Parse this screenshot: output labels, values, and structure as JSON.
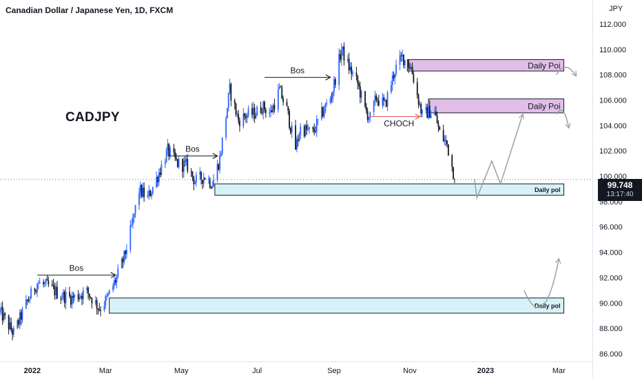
{
  "header": {
    "title": "Canadian Dollar / Japanese Yen, 1D, FXCM",
    "symbol": "CADJPY",
    "currency_label": "JPY"
  },
  "price_badge": {
    "price": "99.748",
    "countdown": "13:17:40"
  },
  "colors": {
    "up": "#2962ff",
    "down": "#131722",
    "zone_blue": "#d8f1f7",
    "zone_purple": "#e1bee7",
    "choch_arrow": "#e05560",
    "projection": "#9aa0a6"
  },
  "chart_data": {
    "type": "candlestick",
    "ylabel": "JPY",
    "ylim": [
      85.4,
      113.9
    ],
    "x_range": [
      "2021-12-06",
      "2023-03-28"
    ],
    "y_ticks": [
      "112.000",
      "110.000",
      "108.000",
      "106.000",
      "104.000",
      "102.000",
      "100.000",
      "98.000",
      "96.000",
      "94.000",
      "92.000",
      "90.000",
      "88.000",
      "86.000"
    ],
    "x_ticks": [
      {
        "label": "2022",
        "date": "2022-01-01",
        "bold": true
      },
      {
        "label": "Mar",
        "date": "2022-03-01"
      },
      {
        "label": "May",
        "date": "2022-05-01"
      },
      {
        "label": "Jul",
        "date": "2022-07-01"
      },
      {
        "label": "Sep",
        "date": "2022-09-01"
      },
      {
        "label": "Nov",
        "date": "2022-11-01"
      },
      {
        "label": "2023",
        "date": "2023-01-01",
        "bold": true
      },
      {
        "label": "Mar",
        "date": "2023-03-01"
      }
    ],
    "current_price": 99.748,
    "price_path": [
      [
        "2021-12-06",
        89.3
      ],
      [
        "2021-12-17",
        87.6
      ],
      [
        "2021-12-27",
        89.9
      ],
      [
        "2022-01-05",
        91.6
      ],
      [
        "2022-01-14",
        91.3
      ],
      [
        "2022-01-24",
        90.6
      ],
      [
        "2022-02-02",
        90.4
      ],
      [
        "2022-02-14",
        90.9
      ],
      [
        "2022-02-24",
        89.6
      ],
      [
        "2022-03-02",
        90.3
      ],
      [
        "2022-03-10",
        92.0
      ],
      [
        "2022-03-16",
        93.6
      ],
      [
        "2022-03-22",
        96.0
      ],
      [
        "2022-03-28",
        98.9
      ],
      [
        "2022-04-04",
        98.3
      ],
      [
        "2022-04-11",
        99.8
      ],
      [
        "2022-04-20",
        102.0
      ],
      [
        "2022-04-28",
        101.0
      ],
      [
        "2022-05-06",
        100.8
      ],
      [
        "2022-05-12",
        99.6
      ],
      [
        "2022-05-20",
        100.0
      ],
      [
        "2022-05-26",
        99.4
      ],
      [
        "2022-06-01",
        101.4
      ],
      [
        "2022-06-09",
        106.8
      ],
      [
        "2022-06-16",
        104.4
      ],
      [
        "2022-06-22",
        104.8
      ],
      [
        "2022-06-30",
        105.0
      ],
      [
        "2022-07-05",
        105.5
      ],
      [
        "2022-07-12",
        105.0
      ],
      [
        "2022-07-19",
        106.8
      ],
      [
        "2022-07-25",
        105.2
      ],
      [
        "2022-08-01",
        102.2
      ],
      [
        "2022-08-05",
        103.8
      ],
      [
        "2022-08-15",
        103.4
      ],
      [
        "2022-08-22",
        104.9
      ],
      [
        "2022-08-30",
        106.4
      ],
      [
        "2022-09-07",
        110.0
      ],
      [
        "2022-09-13",
        108.6
      ],
      [
        "2022-09-20",
        107.3
      ],
      [
        "2022-09-26",
        105.2
      ],
      [
        "2022-09-30",
        104.6
      ],
      [
        "2022-10-05",
        106.2
      ],
      [
        "2022-10-12",
        105.6
      ],
      [
        "2022-10-20",
        108.4
      ],
      [
        "2022-10-26",
        109.4
      ],
      [
        "2022-11-02",
        108.6
      ],
      [
        "2022-11-07",
        106.4
      ],
      [
        "2022-11-11",
        104.8
      ],
      [
        "2022-11-16",
        105.1
      ],
      [
        "2022-11-21",
        105.0
      ],
      [
        "2022-11-25",
        103.4
      ],
      [
        "2022-12-01",
        102.5
      ],
      [
        "2022-12-07",
        99.9
      ]
    ],
    "zones": [
      {
        "label": "Daily Poi",
        "kind": "supply",
        "x0": "2022-10-30",
        "x1": "2023-03-05",
        "y0": 108.3,
        "y1": 109.2
      },
      {
        "label": "Daily Poi",
        "kind": "supply",
        "x0": "2022-11-16",
        "x1": "2023-03-05",
        "y0": 105.0,
        "y1": 106.1
      },
      {
        "label": "Daily pol",
        "kind": "demand",
        "x0": "2022-05-28",
        "x1": "2023-03-05",
        "y0": 98.5,
        "y1": 99.4
      },
      {
        "label": "Daily pol",
        "kind": "demand",
        "x0": "2022-03-04",
        "x1": "2023-03-05",
        "y0": 89.2,
        "y1": 90.4
      }
    ],
    "annotations": [
      {
        "label": "Bos",
        "x0": "2022-01-05",
        "x1": "2022-03-09",
        "y": 92.2
      },
      {
        "label": "Bos",
        "x0": "2022-04-20",
        "x1": "2022-05-30",
        "y": 101.6
      },
      {
        "label": "Bos",
        "x0": "2022-07-07",
        "x1": "2022-08-29",
        "y": 107.8
      },
      {
        "label": "CHOCH",
        "x0": "2022-09-30",
        "x1": "2022-11-09",
        "y": 104.7,
        "style": "choch"
      }
    ],
    "projections": [
      {
        "points": [
          [
            "2022-12-23",
            99.8
          ],
          [
            "2022-12-25",
            98.3
          ],
          [
            "2023-01-06",
            101.2
          ],
          [
            "2023-01-13",
            99.4
          ],
          [
            "2023-01-31",
            104.9
          ]
        ]
      },
      {
        "points": [
          [
            "2023-02-01",
            91.0
          ],
          [
            "2023-02-17",
            89.8
          ],
          [
            "2023-03-01",
            93.5
          ]
        ],
        "curved": true
      },
      {
        "points": [
          [
            "2023-02-27",
            108.0
          ],
          [
            "2023-03-06",
            108.6
          ],
          [
            "2023-03-15",
            107.9
          ]
        ],
        "curved": true
      },
      {
        "points": [
          [
            "2023-02-27",
            104.9
          ],
          [
            "2023-03-05",
            105.1
          ],
          [
            "2023-03-09",
            103.8
          ]
        ],
        "curved": true
      }
    ]
  }
}
